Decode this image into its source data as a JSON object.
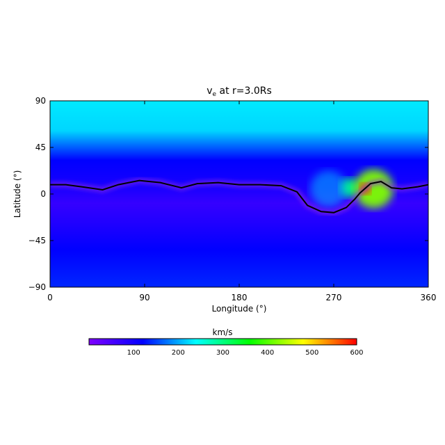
{
  "chart_data": {
    "type": "heatmap",
    "title": "v",
    "title_subscript": "e",
    "title_rest": " at r=3.0Rs",
    "xlabel": "Longitude (°)",
    "ylabel": "Latitude (°)",
    "xlim": [
      0,
      360
    ],
    "ylim": [
      -90,
      90
    ],
    "x_ticks": [
      "0",
      "90",
      "180",
      "270",
      "360"
    ],
    "y_ticks": [
      "90",
      "45",
      "0",
      "−45",
      "−90"
    ],
    "x_tick_values": [
      0,
      90,
      180,
      270,
      360
    ],
    "y_tick_values": [
      90,
      45,
      0,
      -45,
      -90
    ],
    "colorbar": {
      "label": "km/s",
      "range": [
        0,
        600
      ],
      "ticks": [
        "100",
        "200",
        "300",
        "400",
        "500",
        "600"
      ],
      "tick_values": [
        100,
        200,
        300,
        400,
        500,
        600
      ],
      "colormap": [
        "#7f00ff",
        "#0000ff",
        "#00ffff",
        "#00ff00",
        "#ffff00",
        "#ff0000"
      ]
    },
    "background_levels": {
      "pole_north_kms": 230,
      "mid_north_kms": 120,
      "equatorial_band_kms": 70,
      "south_kms": 120
    },
    "neutral_line": {
      "lon": [
        0,
        15,
        30,
        50,
        65,
        85,
        105,
        125,
        140,
        160,
        180,
        200,
        220,
        235,
        245,
        258,
        270,
        282,
        290,
        295,
        305,
        315,
        325,
        335,
        350,
        360
      ],
      "lat": [
        9,
        9,
        7,
        4,
        9,
        13,
        11,
        6,
        10,
        11,
        9,
        9,
        8,
        2,
        -11,
        -17,
        -18,
        -13,
        -5,
        1,
        10,
        12,
        6,
        5,
        7,
        9
      ]
    },
    "features": [
      {
        "lon": 285,
        "lat": 6,
        "peak_kms": 300
      },
      {
        "lon": 308,
        "lat": 5,
        "peak_kms": 420
      },
      {
        "lon": 300,
        "lat": 5,
        "peak_kms": 580
      },
      {
        "lon": 265,
        "lat": 5,
        "peak_kms": 210
      }
    ]
  }
}
